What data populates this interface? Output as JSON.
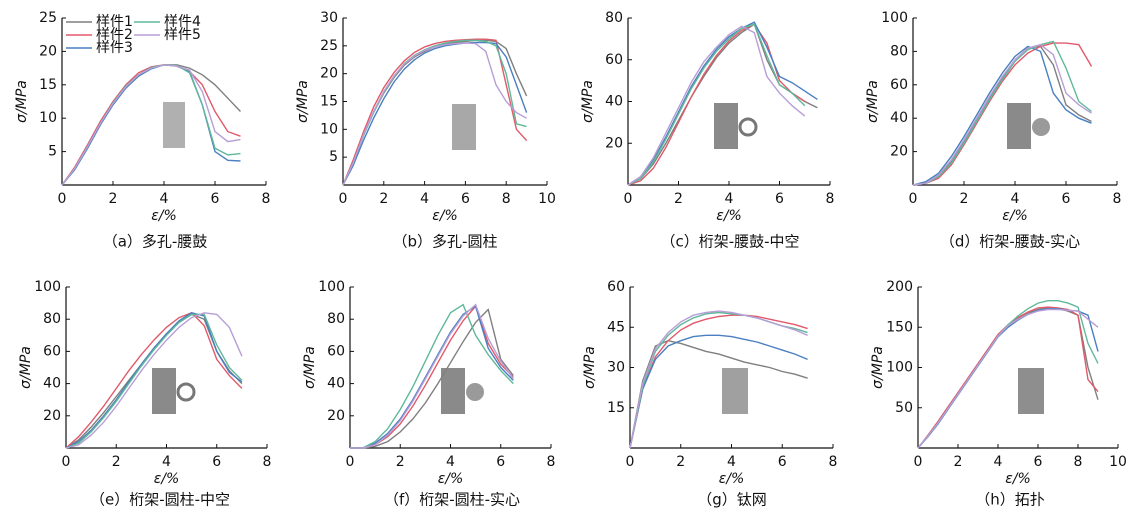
{
  "chart_data": [
    {
      "type": "line",
      "caption": "（a）多孔-腰鼓",
      "xlabel": "ε/%",
      "ylabel": "σ/MPa",
      "x": [
        0,
        0.5,
        1,
        1.5,
        2,
        2.5,
        3,
        3.5,
        4,
        4.5,
        5,
        5.5,
        6,
        6.5,
        7
      ],
      "xlim": [
        0,
        8
      ],
      "xticks": [
        0,
        2,
        4,
        6,
        8
      ],
      "ylim": [
        0,
        25
      ],
      "yticks": [
        5,
        10,
        15,
        20,
        25
      ],
      "series": [
        {
          "name": "样件1",
          "color": "#7f7f7f",
          "values": [
            0,
            2.5,
            5.5,
            9,
            12,
            14.5,
            16.3,
            17.5,
            18,
            18,
            17.5,
            16.5,
            15,
            13,
            11
          ]
        },
        {
          "name": "样件2",
          "color": "#e05a6a",
          "values": [
            0,
            2.7,
            6,
            9.5,
            12.5,
            15,
            16.8,
            17.7,
            18,
            17.8,
            17,
            15,
            11,
            8,
            7.3
          ]
        },
        {
          "name": "样件3",
          "color": "#4a7fc1",
          "values": [
            0,
            2.3,
            5.5,
            9,
            12,
            14.5,
            16.3,
            17.4,
            18,
            17.8,
            17,
            12,
            5,
            3.7,
            3.6
          ]
        },
        {
          "name": "样件4",
          "color": "#5fb89a",
          "values": [
            0,
            2.5,
            5.8,
            9.2,
            12.3,
            14.8,
            16.5,
            17.6,
            18,
            17.9,
            16.8,
            12,
            5.5,
            4.5,
            4.7
          ]
        },
        {
          "name": "样件5",
          "color": "#b89ed6",
          "values": [
            0,
            2.5,
            5.7,
            9.2,
            12.2,
            14.7,
            16.5,
            17.5,
            18,
            17.8,
            17.2,
            14,
            8,
            6.5,
            6.8
          ]
        }
      ]
    },
    {
      "type": "line",
      "caption": "（b）多孔-圆柱",
      "xlabel": "ε/%",
      "ylabel": "σ/MPa",
      "x": [
        0,
        0.5,
        1,
        1.5,
        2,
        2.5,
        3,
        3.5,
        4,
        4.5,
        5,
        5.5,
        6,
        6.5,
        7,
        7.5,
        8,
        8.5,
        9
      ],
      "xlim": [
        0,
        10
      ],
      "xticks": [
        0,
        2,
        4,
        6,
        8,
        10
      ],
      "ylim": [
        0,
        30
      ],
      "yticks": [
        5,
        10,
        15,
        20,
        25,
        30
      ],
      "series": [
        {
          "color": "#7f7f7f",
          "values": [
            0,
            4,
            9,
            13,
            16.5,
            19.3,
            21.5,
            23,
            24,
            24.8,
            25.3,
            25.6,
            25.8,
            26,
            26,
            25.8,
            24.5,
            20,
            16
          ]
        },
        {
          "color": "#e05a6a",
          "values": [
            0,
            4.5,
            9.5,
            14,
            17.5,
            20.2,
            22.3,
            23.8,
            24.8,
            25.4,
            25.8,
            26,
            26.1,
            26.2,
            26.2,
            26,
            18,
            10,
            8
          ]
        },
        {
          "color": "#4a7fc1",
          "values": [
            0,
            3.5,
            8,
            12,
            15.5,
            18.5,
            20.8,
            22.5,
            23.7,
            24.5,
            25,
            25.3,
            25.5,
            25.6,
            25.6,
            25.4,
            23,
            18,
            13
          ]
        },
        {
          "color": "#5fb89a",
          "values": [
            0,
            4,
            8.8,
            13,
            16.7,
            19.5,
            21.8,
            23.3,
            24.3,
            25,
            25.5,
            25.8,
            26,
            26,
            25.8,
            25,
            20,
            11,
            10.5
          ]
        },
        {
          "color": "#b89ed6",
          "values": [
            0,
            4,
            9,
            13.2,
            16.8,
            19.6,
            21.7,
            23.2,
            24.2,
            24.8,
            25.2,
            25.4,
            25.5,
            25.4,
            24,
            18,
            15,
            13,
            12
          ]
        }
      ]
    },
    {
      "type": "line",
      "caption": "（c）桁架-腰鼓-中空",
      "xlabel": "ε/%",
      "ylabel": "σ/MPa",
      "x": [
        0,
        0.5,
        1,
        1.5,
        2,
        2.5,
        3,
        3.5,
        4,
        4.5,
        5,
        5.5,
        6,
        6.5,
        7,
        7.5
      ],
      "xlim": [
        0,
        8
      ],
      "xticks": [
        0,
        2,
        4,
        6,
        8
      ],
      "ylim": [
        0,
        80
      ],
      "yticks": [
        20,
        40,
        60,
        80
      ],
      "series": [
        {
          "color": "#7f7f7f",
          "values": [
            0,
            3,
            10,
            20,
            31,
            42,
            52,
            61,
            68,
            73,
            77,
            60,
            48,
            44,
            40,
            37
          ]
        },
        {
          "color": "#e05a6a",
          "values": [
            0,
            2,
            8,
            18,
            30,
            42,
            53,
            62,
            69,
            74,
            77,
            68,
            50,
            44,
            40,
            null
          ]
        },
        {
          "color": "#4a7fc1",
          "values": [
            0,
            4,
            12,
            23,
            35,
            47,
            57,
            65,
            71,
            75,
            78,
            66,
            52,
            49,
            45,
            41
          ]
        },
        {
          "color": "#5fb89a",
          "values": [
            0,
            3,
            11,
            22,
            34,
            46,
            56,
            64,
            70,
            75,
            77,
            62,
            48,
            44,
            38,
            null
          ]
        },
        {
          "color": "#b89ed6",
          "values": [
            0,
            4,
            13,
            25,
            37,
            49,
            59,
            66,
            72,
            76,
            73,
            52,
            44,
            38,
            33,
            null
          ]
        }
      ]
    },
    {
      "type": "line",
      "caption": "（d）桁架-腰鼓-实心",
      "xlabel": "ε/%",
      "ylabel": "σ/MPa",
      "x": [
        0,
        0.5,
        1,
        1.5,
        2,
        2.5,
        3,
        3.5,
        4,
        4.5,
        5,
        5.5,
        6,
        6.5,
        7
      ],
      "xlim": [
        0,
        8
      ],
      "xticks": [
        0,
        2,
        4,
        6,
        8
      ],
      "ylim": [
        0,
        100
      ],
      "yticks": [
        20,
        40,
        60,
        80,
        100
      ],
      "series": [
        {
          "color": "#7f7f7f",
          "values": [
            0,
            1,
            5,
            14,
            26,
            39,
            52,
            64,
            75,
            82,
            83,
            72,
            48,
            42,
            38
          ]
        },
        {
          "color": "#e05a6a",
          "values": [
            0,
            1,
            4,
            12,
            24,
            37,
            50,
            62,
            72,
            79,
            83,
            85,
            85,
            84,
            71
          ]
        },
        {
          "color": "#4a7fc1",
          "values": [
            0,
            2,
            7,
            17,
            29,
            42,
            55,
            67,
            77,
            83,
            80,
            55,
            45,
            40,
            37
          ]
        },
        {
          "color": "#5fb89a",
          "values": [
            0,
            1,
            5,
            13,
            25,
            38,
            51,
            63,
            74,
            81,
            84,
            86,
            70,
            50,
            44
          ]
        },
        {
          "color": "#b89ed6",
          "values": [
            0,
            1,
            6,
            15,
            27,
            40,
            53,
            65,
            75,
            82,
            84,
            78,
            55,
            48,
            43
          ]
        }
      ]
    },
    {
      "type": "line",
      "caption": "（e）桁架-圆柱-中空",
      "xlabel": "ε/%",
      "ylabel": "σ/MPa",
      "x": [
        0,
        0.5,
        1,
        1.5,
        2,
        2.5,
        3,
        3.5,
        4,
        4.5,
        5,
        5.5,
        6,
        6.5,
        7
      ],
      "xlim": [
        0,
        8
      ],
      "xticks": [
        0,
        2,
        4,
        6,
        8
      ],
      "ylim": [
        0,
        100
      ],
      "yticks": [
        20,
        40,
        60,
        80,
        100
      ],
      "series": [
        {
          "color": "#7f7f7f",
          "values": [
            0,
            5,
            13,
            22,
            32,
            42,
            52,
            62,
            71,
            78,
            83,
            80,
            60,
            48,
            40
          ]
        },
        {
          "color": "#e05a6a",
          "values": [
            0,
            7,
            16,
            26,
            37,
            48,
            58,
            67,
            75,
            81,
            84,
            76,
            55,
            45,
            37
          ]
        },
        {
          "color": "#4a7fc1",
          "values": [
            0,
            4,
            11,
            20,
            30,
            41,
            52,
            62,
            71,
            79,
            84,
            82,
            60,
            47,
            41
          ]
        },
        {
          "color": "#5fb89a",
          "values": [
            0,
            3,
            10,
            19,
            29,
            40,
            51,
            61,
            70,
            78,
            83,
            83,
            64,
            50,
            42
          ]
        },
        {
          "color": "#b89ed6",
          "values": [
            0,
            2,
            8,
            16,
            26,
            37,
            48,
            58,
            67,
            75,
            81,
            84,
            83,
            75,
            57
          ]
        }
      ]
    },
    {
      "type": "line",
      "caption": "（f）桁架-圆柱-实心",
      "xlabel": "ε/%",
      "ylabel": "σ/MPa",
      "x": [
        0,
        0.5,
        1,
        1.5,
        2,
        2.5,
        3,
        3.5,
        4,
        4.5,
        5,
        5.5,
        6,
        6.5
      ],
      "xlim": [
        0,
        8
      ],
      "xticks": [
        0,
        2,
        4,
        6,
        8
      ],
      "ylim": [
        0,
        100
      ],
      "yticks": [
        20,
        40,
        60,
        80,
        100
      ],
      "series": [
        {
          "color": "#7f7f7f",
          "values": [
            0,
            0,
            1,
            4,
            10,
            18,
            28,
            40,
            53,
            66,
            78,
            86,
            55,
            45
          ]
        },
        {
          "color": "#e05a6a",
          "values": [
            0,
            0,
            2,
            7,
            15,
            26,
            39,
            53,
            67,
            79,
            88,
            65,
            52,
            44
          ]
        },
        {
          "color": "#4a7fc1",
          "values": [
            0,
            0,
            3,
            9,
            18,
            30,
            44,
            58,
            72,
            83,
            88,
            62,
            50,
            42
          ]
        },
        {
          "color": "#5fb89a",
          "values": [
            0,
            0,
            4,
            12,
            24,
            38,
            54,
            70,
            84,
            89,
            70,
            58,
            48,
            40
          ]
        },
        {
          "color": "#b89ed6",
          "values": [
            0,
            0,
            2,
            8,
            17,
            29,
            43,
            57,
            71,
            82,
            89,
            68,
            54,
            43
          ]
        }
      ]
    },
    {
      "type": "line",
      "caption": "（g）钛网",
      "xlabel": "ε/%",
      "ylabel": "σ/MPa",
      "x": [
        0,
        0.5,
        1,
        1.5,
        2,
        2.5,
        3,
        3.5,
        4,
        4.5,
        5,
        5.5,
        6,
        6.5,
        7
      ],
      "xlim": [
        0,
        8
      ],
      "xticks": [
        0,
        2,
        4,
        6,
        8
      ],
      "ylim": [
        0,
        60
      ],
      "yticks": [
        15,
        30,
        45,
        60
      ],
      "series": [
        {
          "color": "#7f7f7f",
          "values": [
            0,
            25,
            38,
            40,
            39,
            37.5,
            36,
            35,
            33.5,
            32,
            31,
            30,
            28.5,
            27.5,
            26
          ]
        },
        {
          "color": "#e05a6a",
          "values": [
            0,
            22,
            34,
            40,
            44,
            46.5,
            48,
            49,
            49.5,
            49.5,
            49,
            48,
            47,
            46,
            44.5
          ]
        },
        {
          "color": "#4a7fc1",
          "values": [
            0,
            22,
            33,
            38,
            40,
            41.5,
            42,
            42,
            41.5,
            40.5,
            39.5,
            38,
            36.5,
            35,
            33
          ]
        },
        {
          "color": "#5fb89a",
          "values": [
            0,
            23,
            36,
            42,
            46,
            48.5,
            50,
            50.5,
            50,
            49.5,
            48.5,
            47,
            45.5,
            44.5,
            43
          ]
        },
        {
          "color": "#b89ed6",
          "values": [
            0,
            24,
            37,
            43,
            47,
            49.5,
            50.5,
            51,
            50.5,
            49.5,
            48.5,
            47,
            45.5,
            44,
            42
          ]
        }
      ]
    },
    {
      "type": "line",
      "caption": "（h）拓扑",
      "xlabel": "ε/%",
      "ylabel": "σ/MPa",
      "x": [
        0,
        0.5,
        1,
        1.5,
        2,
        2.5,
        3,
        3.5,
        4,
        4.5,
        5,
        5.5,
        6,
        6.5,
        7,
        7.5,
        8,
        8.5,
        9
      ],
      "xlim": [
        0,
        10
      ],
      "xticks": [
        0,
        2,
        4,
        6,
        8,
        10
      ],
      "ylim": [
        0,
        200
      ],
      "yticks": [
        50,
        100,
        150,
        200
      ],
      "series": [
        {
          "color": "#7f7f7f",
          "values": [
            0,
            15,
            32,
            50,
            68,
            86,
            104,
            122,
            140,
            152,
            161,
            168,
            172,
            174,
            173,
            170,
            165,
            100,
            60
          ]
        },
        {
          "color": "#e05a6a",
          "values": [
            0,
            16,
            33,
            51,
            69,
            87,
            105,
            123,
            141,
            153,
            162,
            169,
            174,
            175,
            174,
            172,
            165,
            85,
            70
          ]
        },
        {
          "color": "#4a7fc1",
          "values": [
            0,
            14,
            30,
            48,
            66,
            84,
            102,
            120,
            138,
            150,
            159,
            166,
            171,
            173,
            173,
            171,
            170,
            165,
            120
          ]
        },
        {
          "color": "#5fb89a",
          "values": [
            0,
            15,
            31,
            49,
            67,
            85,
            103,
            121,
            139,
            153,
            164,
            173,
            180,
            183,
            183,
            180,
            175,
            130,
            105
          ]
        },
        {
          "color": "#b89ed6",
          "values": [
            0,
            15,
            31,
            49,
            67,
            85,
            103,
            121,
            139,
            152,
            160,
            166,
            170,
            172,
            172,
            171,
            170,
            160,
            150
          ]
        }
      ]
    }
  ]
}
